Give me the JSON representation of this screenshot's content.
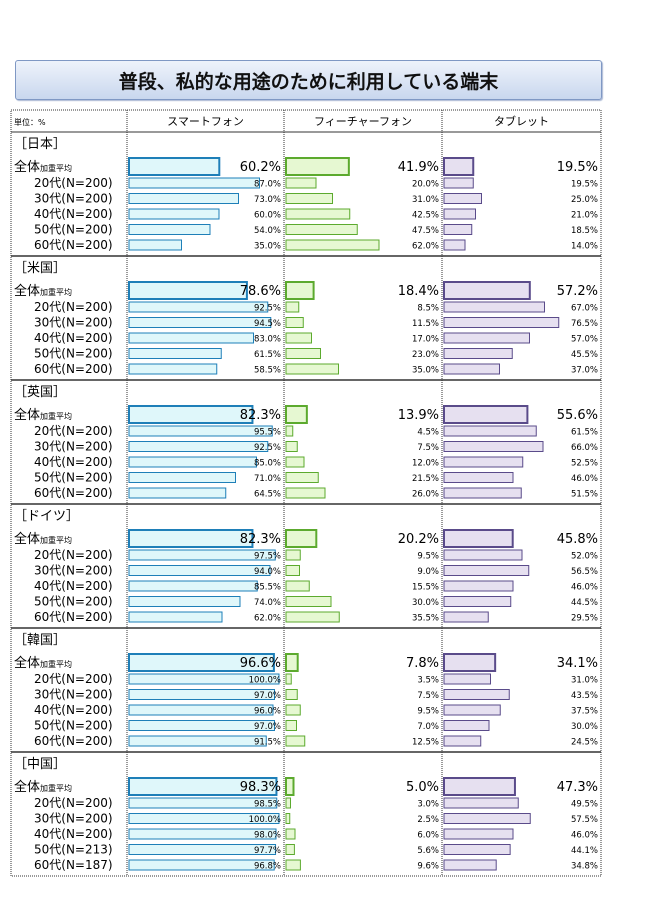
{
  "title": "普段、私的な用途のために利用している端末",
  "chart_data": {
    "type": "bar",
    "title": "普段、私的な用途のために利用している端末",
    "unit_label": "単位：%",
    "xlim": [
      0,
      100
    ],
    "columns": [
      "スマートフォン",
      "フィーチャーフォン",
      "タブレット"
    ],
    "overall_label": "全体",
    "overall_sublabel": "加重平均",
    "groups": [
      {
        "country": "［日本］",
        "overall": [
          60.2,
          41.9,
          19.5
        ],
        "rows": [
          {
            "label": "20代(N=200)",
            "values": [
              87.0,
              20.0,
              19.5
            ]
          },
          {
            "label": "30代(N=200)",
            "values": [
              73.0,
              31.0,
              25.0
            ]
          },
          {
            "label": "40代(N=200)",
            "values": [
              60.0,
              42.5,
              21.0
            ]
          },
          {
            "label": "50代(N=200)",
            "values": [
              54.0,
              47.5,
              18.5
            ]
          },
          {
            "label": "60代(N=200)",
            "values": [
              35.0,
              62.0,
              14.0
            ]
          }
        ]
      },
      {
        "country": "［米国］",
        "overall": [
          78.6,
          18.4,
          57.2
        ],
        "rows": [
          {
            "label": "20代(N=200)",
            "values": [
              92.5,
              8.5,
              67.0
            ]
          },
          {
            "label": "30代(N=200)",
            "values": [
              94.5,
              11.5,
              76.5
            ]
          },
          {
            "label": "40代(N=200)",
            "values": [
              83.0,
              17.0,
              57.0
            ]
          },
          {
            "label": "50代(N=200)",
            "values": [
              61.5,
              23.0,
              45.5
            ]
          },
          {
            "label": "60代(N=200)",
            "values": [
              58.5,
              35.0,
              37.0
            ]
          }
        ]
      },
      {
        "country": "［英国］",
        "overall": [
          82.3,
          13.9,
          55.6
        ],
        "rows": [
          {
            "label": "20代(N=200)",
            "values": [
              95.5,
              4.5,
              61.5
            ]
          },
          {
            "label": "30代(N=200)",
            "values": [
              92.5,
              7.5,
              66.0
            ]
          },
          {
            "label": "40代(N=200)",
            "values": [
              85.0,
              12.0,
              52.5
            ]
          },
          {
            "label": "50代(N=200)",
            "values": [
              71.0,
              21.5,
              46.0
            ]
          },
          {
            "label": "60代(N=200)",
            "values": [
              64.5,
              26.0,
              51.5
            ]
          }
        ]
      },
      {
        "country": "［ドイツ］",
        "overall": [
          82.3,
          20.2,
          45.8
        ],
        "rows": [
          {
            "label": "20代(N=200)",
            "values": [
              97.5,
              9.5,
              52.0
            ]
          },
          {
            "label": "30代(N=200)",
            "values": [
              94.0,
              9.0,
              56.5
            ]
          },
          {
            "label": "40代(N=200)",
            "values": [
              85.5,
              15.5,
              46.0
            ]
          },
          {
            "label": "50代(N=200)",
            "values": [
              74.0,
              30.0,
              44.5
            ]
          },
          {
            "label": "60代(N=200)",
            "values": [
              62.0,
              35.5,
              29.5
            ]
          }
        ]
      },
      {
        "country": "［韓国］",
        "overall": [
          96.6,
          7.8,
          34.1
        ],
        "rows": [
          {
            "label": "20代(N=200)",
            "values": [
              100.0,
              3.5,
              31.0
            ]
          },
          {
            "label": "30代(N=200)",
            "values": [
              97.0,
              7.5,
              43.5
            ]
          },
          {
            "label": "40代(N=200)",
            "values": [
              96.0,
              9.5,
              37.5
            ]
          },
          {
            "label": "50代(N=200)",
            "values": [
              97.0,
              7.0,
              30.0
            ]
          },
          {
            "label": "60代(N=200)",
            "values": [
              91.5,
              12.5,
              24.5
            ]
          }
        ]
      },
      {
        "country": "［中国］",
        "overall": [
          98.3,
          5.0,
          47.3
        ],
        "rows": [
          {
            "label": "20代(N=200)",
            "values": [
              98.5,
              3.0,
              49.5
            ]
          },
          {
            "label": "30代(N=200)",
            "values": [
              100.0,
              2.5,
              57.5
            ]
          },
          {
            "label": "40代(N=200)",
            "values": [
              98.0,
              6.0,
              46.0
            ]
          },
          {
            "label": "50代(N=213)",
            "values": [
              97.7,
              5.6,
              44.1
            ]
          },
          {
            "label": "60代(N=187)",
            "values": [
              96.8,
              9.6,
              34.8
            ]
          }
        ]
      }
    ]
  },
  "colors": {
    "smartphone_fill": "#dff7fa",
    "smartphone_stroke": "#1e7fb8",
    "feature_fill": "#e6f8d2",
    "feature_stroke": "#5caa2e",
    "tablet_fill": "#e6e0f0",
    "tablet_stroke": "#5a4b8a"
  }
}
